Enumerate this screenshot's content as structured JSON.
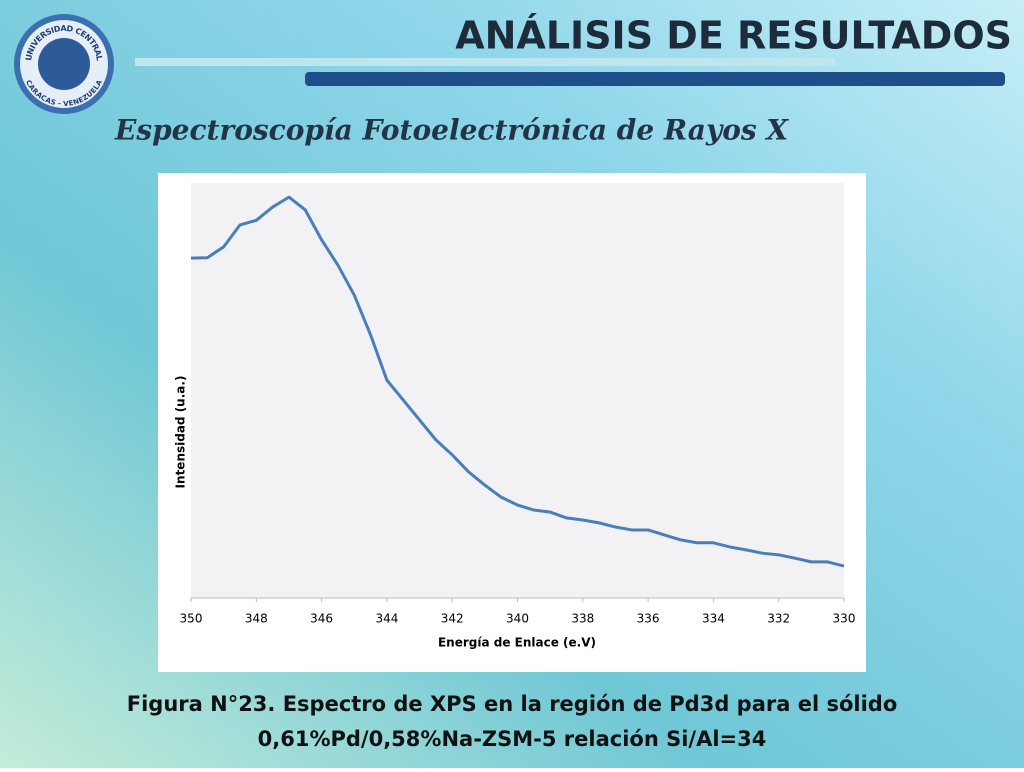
{
  "slide": {
    "heading": "ANÁLISIS DE RESULTADOS",
    "subheading": "Espectroscopía Fotoelectrónica de Rayos X",
    "logo_top": "UNIVERSIDAD CENTRAL",
    "logo_bottom": "CARACAS - VENEZUELA",
    "caption": [
      "Figura N°23. Espectro de XPS en la región de Pd3d para el sólido",
      "0,61%Pd/0,58%Na-ZSM-5 relación Si/Al=34"
    ]
  },
  "chart_data": {
    "type": "line",
    "x_label": "Energía de Enlace (e.V)",
    "y_label": "Intensidad (u.a.)",
    "x": [
      350,
      349.5,
      349,
      348.5,
      348,
      347.5,
      347,
      346.5,
      346,
      345.5,
      345,
      344.5,
      344,
      343.5,
      343,
      342.5,
      342,
      341.5,
      341,
      340.5,
      340,
      339.5,
      339,
      338.5,
      338,
      337.5,
      337,
      336.5,
      336,
      335.5,
      335,
      334.5,
      334,
      333.5,
      333,
      332.5,
      332,
      331.5,
      331,
      330.5,
      330
    ],
    "series": [
      {
        "name": "Pd3d",
        "color": "#4a7ebb",
        "values": [
          81.9,
          82,
          84.6,
          89.9,
          91,
          94.2,
          96.6,
          93.5,
          86.3,
          80.2,
          73,
          63.4,
          52.5,
          47.7,
          42.9,
          38.1,
          34.5,
          30.4,
          27.2,
          24.3,
          22.4,
          21.2,
          20.7,
          19.3,
          18.8,
          18.1,
          17.1,
          16.4,
          16.4,
          15.2,
          14,
          13.3,
          13.3,
          12.3,
          11.6,
          10.8,
          10.4,
          9.6,
          8.7,
          8.7,
          7.7
        ]
      }
    ],
    "xlim": [
      350,
      330
    ],
    "xticks": [
      350,
      348,
      346,
      344,
      342,
      340,
      338,
      336,
      334,
      332,
      330
    ],
    "ylim": [
      0,
      100
    ],
    "grid": false
  }
}
